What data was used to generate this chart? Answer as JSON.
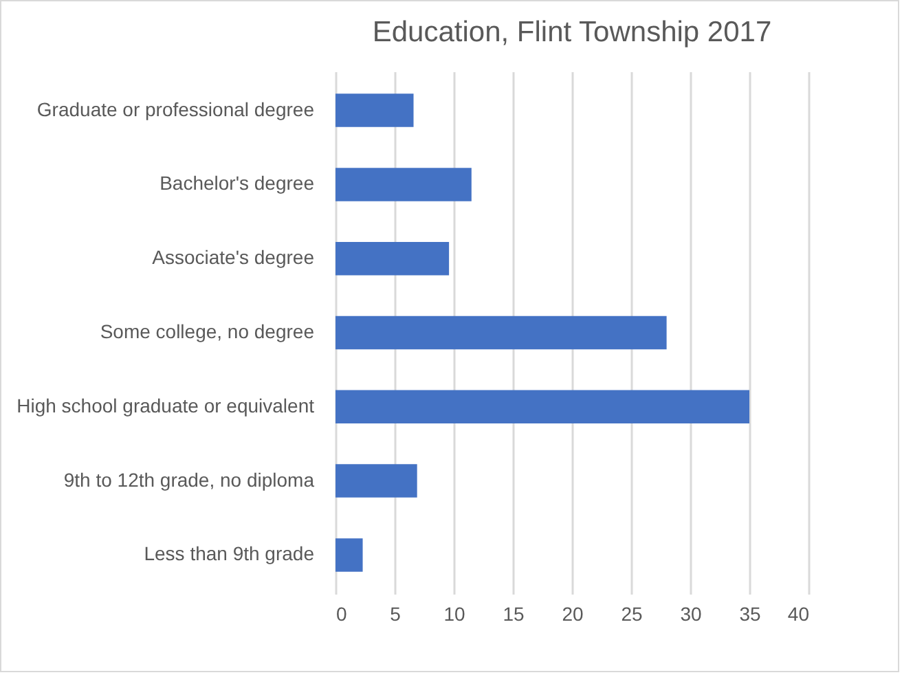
{
  "chart_data": {
    "type": "bar",
    "orientation": "horizontal",
    "title": "Education, Flint Township 2017",
    "categories": [
      "Graduate or professional degree",
      "Bachelor's degree",
      "Associate's degree",
      "Some college, no degree",
      "High school graduate or equivalent",
      "9th to 12th grade, no diploma",
      "Less than 9th grade"
    ],
    "values": [
      6.6,
      11.5,
      9.6,
      28.0,
      35.0,
      6.9,
      2.3
    ],
    "color": "#4472c4",
    "xlim": [
      0,
      40
    ],
    "xticks": [
      0,
      5,
      10,
      15,
      20,
      25,
      30,
      35,
      40
    ],
    "grid": "x"
  }
}
